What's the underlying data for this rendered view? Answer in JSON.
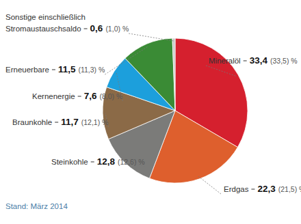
{
  "chart_data": {
    "type": "pie",
    "categories": [
      "Mineralöl",
      "Erdgas",
      "Steinkohle",
      "Braunkohle",
      "Kernenergie",
      "Erneuerbare",
      "Sonstige einschließlich\nStromaustauschsaldo"
    ],
    "values": [
      33.4,
      22.3,
      12.8,
      11.7,
      7.6,
      11.5,
      0.6
    ],
    "value_labels": [
      "33,4",
      "22,3",
      "12,8",
      "11,7",
      "7,6",
      "11,5",
      "0,6"
    ],
    "previous_values": [
      33.5,
      21.5,
      12.6,
      12.1,
      8.0,
      11.3,
      1.0
    ],
    "previous_value_labels": [
      "(33,5) %",
      "(21,5) %",
      "(12,6) %",
      "(12,1) %",
      "(8,0) %",
      "(11,3) %",
      "(1,0) %"
    ],
    "colors": [
      "#d5202e",
      "#de5f2d",
      "#7b7b79",
      "#8b6a47",
      "#1c9fdc",
      "#3a8b35",
      "#c9c9c9"
    ],
    "data_labels": true,
    "annotations": [
      "Stand: März 2014"
    ]
  }
}
